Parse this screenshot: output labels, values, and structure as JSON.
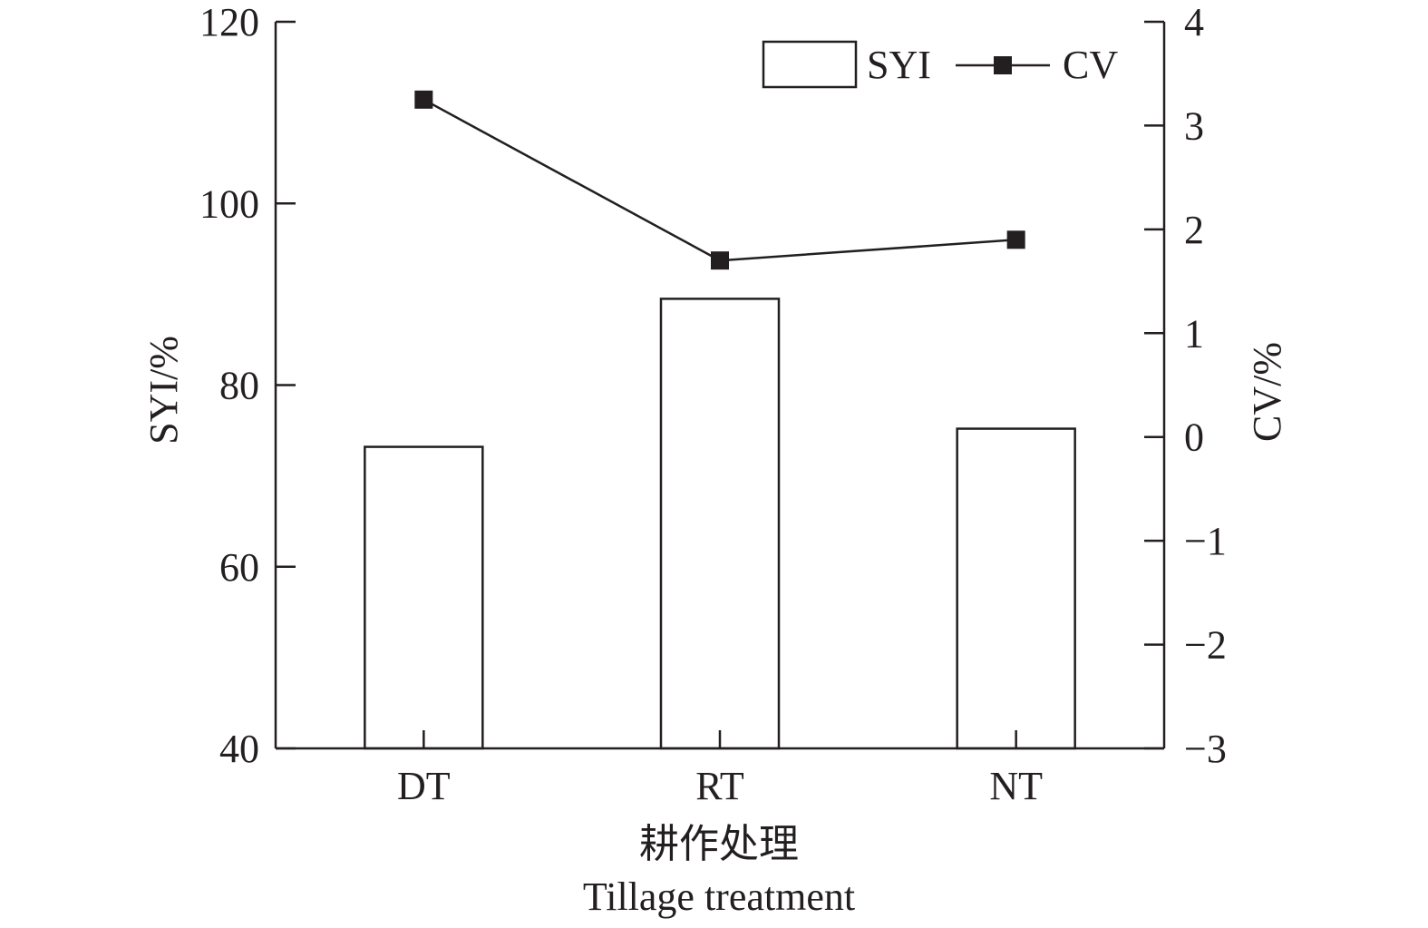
{
  "chart_data": {
    "type": "bar",
    "categories": [
      "DT",
      "RT",
      "NT"
    ],
    "series": [
      {
        "name": "SYI",
        "type": "bar",
        "axis": "left",
        "values": [
          73.2,
          89.5,
          75.2
        ]
      },
      {
        "name": "CV",
        "type": "line",
        "axis": "right",
        "marker": "square",
        "values": [
          3.25,
          1.7,
          1.9
        ]
      }
    ],
    "xlabel": "耕作处理",
    "xlabel_en": "Tillage treatment",
    "ylabel": "SYI/%",
    "y2label": "CV/%",
    "ylim": [
      40,
      120
    ],
    "y2lim": [
      -3,
      4
    ],
    "yticks": [
      40,
      60,
      80,
      100,
      120
    ],
    "y2ticks": [
      -3,
      -2,
      -1,
      0,
      1,
      2,
      3,
      4
    ],
    "grid": false,
    "legend_position": "top-right",
    "colors": {
      "bar_fill": "#ffffff",
      "stroke": "#231f20",
      "marker": "#231f20"
    }
  }
}
